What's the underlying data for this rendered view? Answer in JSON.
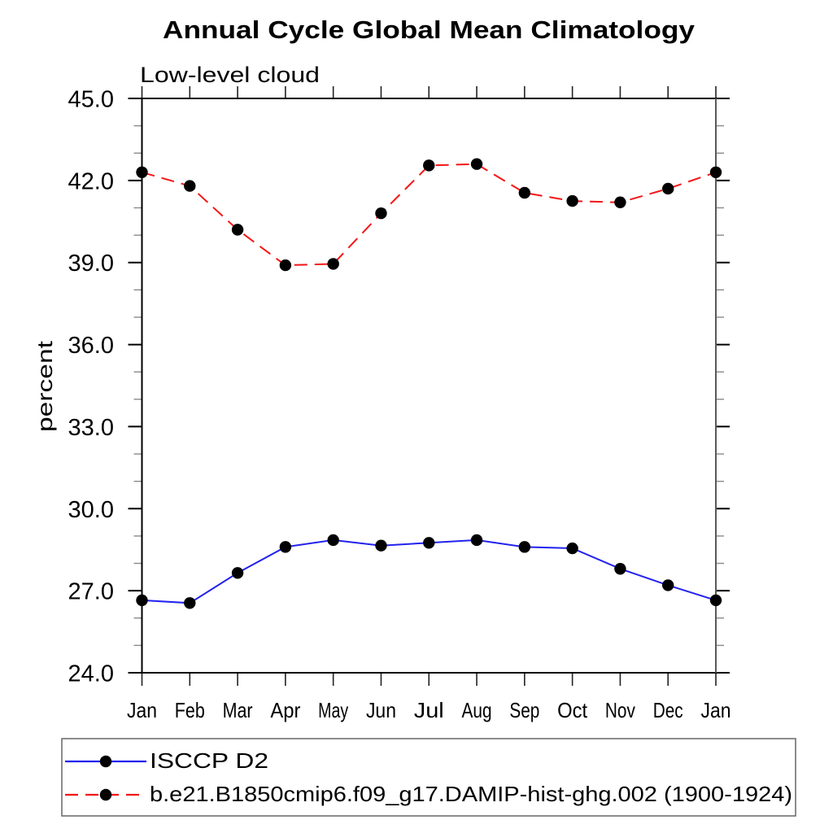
{
  "chart_data": {
    "type": "line",
    "title": "Annual Cycle Global Mean Climatology",
    "subtitle": "Low-level cloud",
    "ylabel": "percent",
    "unit": "percent",
    "categories": [
      "Jan",
      "Feb",
      "Mar",
      "Apr",
      "May",
      "Jun",
      "Jul",
      "Aug",
      "Sep",
      "Oct",
      "Nov",
      "Dec",
      "Jan"
    ],
    "ylim": [
      24.0,
      45.0
    ],
    "ytick_values": [
      24.0,
      27.0,
      30.0,
      33.0,
      36.0,
      39.0,
      42.0,
      45.0
    ],
    "ytick_labels": [
      "24.0",
      "27.0",
      "30.0",
      "33.0",
      "36.0",
      "39.0",
      "42.0",
      "45.0"
    ],
    "ytick_minor_step": 1.0,
    "grid": false,
    "legend_position": "bottom",
    "marker": "filled-circle",
    "marker_color": "#000000",
    "series": [
      {
        "name": "ISCCP D2",
        "color": "#2222ee",
        "style": "solid",
        "values": [
          26.65,
          26.55,
          27.65,
          28.6,
          28.85,
          28.65,
          28.75,
          28.85,
          28.6,
          28.55,
          27.8,
          27.2,
          26.65
        ]
      },
      {
        "name": "b.e21.B1850cmip6.f09_g17.DAMIP-hist-ghg.002 (1900-1924)",
        "color": "#f51515",
        "style": "dashed",
        "values": [
          42.3,
          41.8,
          40.2,
          38.9,
          38.95,
          40.8,
          42.55,
          42.6,
          41.55,
          41.25,
          41.2,
          41.7,
          42.3
        ]
      }
    ],
    "axis_color": "#000000",
    "minor_tick_color": "#8a8a8a",
    "legend_border_color": "#666666"
  }
}
